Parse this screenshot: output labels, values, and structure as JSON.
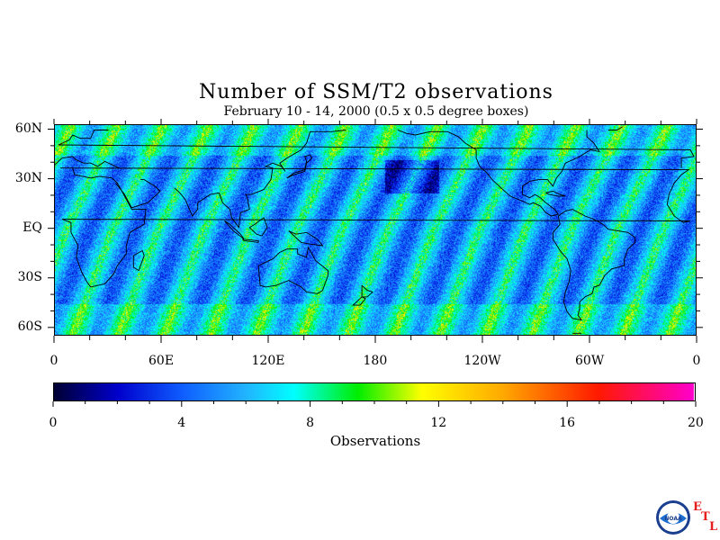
{
  "title": "Number of SSM/T2 observations",
  "subtitle": "February 10 - 14, 2000 (0.5 x 0.5 degree boxes)",
  "map": {
    "lat_range": [
      -65,
      63
    ],
    "lon_range": [
      0,
      360
    ],
    "lat_ticks": [
      {
        "lat": 60,
        "label": "60N"
      },
      {
        "lat": 30,
        "label": "30N"
      },
      {
        "lat": 0,
        "label": "EQ"
      },
      {
        "lat": -30,
        "label": "30S"
      },
      {
        "lat": -60,
        "label": "60S"
      }
    ],
    "lon_ticks": [
      {
        "lon": 0,
        "label": "0"
      },
      {
        "lon": 60,
        "label": "60E"
      },
      {
        "lon": 120,
        "label": "120E"
      },
      {
        "lon": 180,
        "label": "180"
      },
      {
        "lon": 240,
        "label": "120W"
      },
      {
        "lon": 300,
        "label": "60W"
      },
      {
        "lon": 360,
        "label": "0"
      }
    ]
  },
  "colorbar": {
    "label": "Observations",
    "range": [
      0,
      20
    ],
    "ticks": [
      {
        "value": 0,
        "label": "0"
      },
      {
        "value": 4,
        "label": "4"
      },
      {
        "value": 8,
        "label": "8"
      },
      {
        "value": 12,
        "label": "12"
      },
      {
        "value": 16,
        "label": "16"
      },
      {
        "value": 20,
        "label": "20"
      }
    ],
    "stops": [
      {
        "v": 0,
        "color": "#000033"
      },
      {
        "v": 2,
        "color": "#0000cc"
      },
      {
        "v": 4,
        "color": "#0f5dff"
      },
      {
        "v": 6,
        "color": "#22b4ff"
      },
      {
        "v": 7.5,
        "color": "#00ffff"
      },
      {
        "v": 9.5,
        "color": "#00ee00"
      },
      {
        "v": 11.5,
        "color": "#ffff00"
      },
      {
        "v": 14,
        "color": "#ffaa00"
      },
      {
        "v": 17,
        "color": "#ff1a00"
      },
      {
        "v": 20,
        "color": "#ff00cc"
      }
    ]
  },
  "logo": {
    "name": "NOAA",
    "letters": [
      "E",
      "T",
      "L"
    ],
    "accent_color": "#e41d1d"
  }
}
